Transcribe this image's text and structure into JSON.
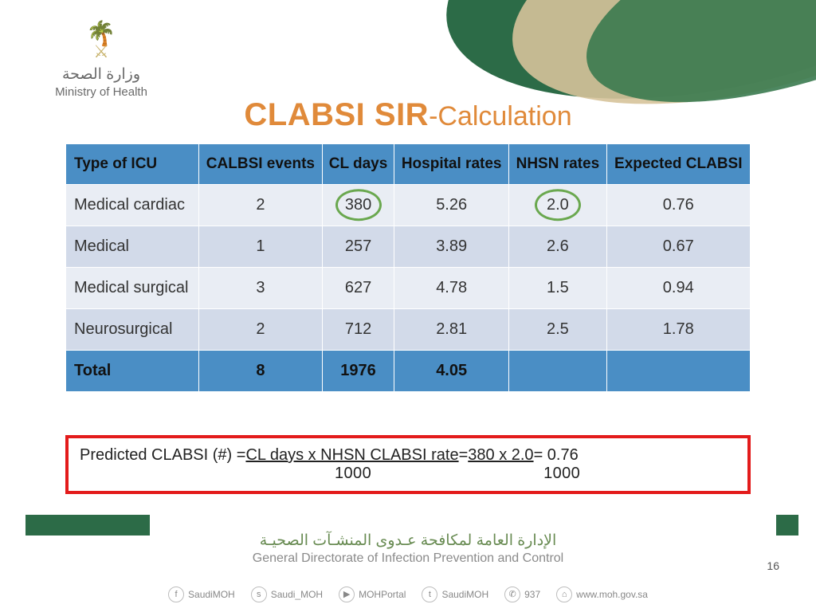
{
  "logo": {
    "arabic": "وزارة الصحة",
    "english": "Ministry of Health"
  },
  "title": {
    "main": "CLABSI SIR",
    "suffix": "-Calculation"
  },
  "table": {
    "columns": [
      "Type of ICU",
      "CALBSI events",
      "CL days",
      "Hospital rates",
      "NHSN rates",
      "Expected CLABSI"
    ],
    "rows": [
      {
        "cells": [
          "Medical cardiac",
          "2",
          "380",
          "5.26",
          "2.0",
          "0.76"
        ],
        "circled": [
          2,
          4
        ]
      },
      {
        "cells": [
          "Medical",
          "1",
          "257",
          "3.89",
          "2.6",
          "0.67"
        ],
        "circled": []
      },
      {
        "cells": [
          "Medical surgical",
          "3",
          "627",
          "4.78",
          "1.5",
          "0.94"
        ],
        "circled": []
      },
      {
        "cells": [
          "Neurosurgical",
          "2",
          "712",
          "2.81",
          "2.5",
          "1.78"
        ],
        "circled": []
      }
    ],
    "total_row": [
      "Total",
      "8",
      "1976",
      "4.05",
      "",
      ""
    ],
    "header_bg": "#4a8ec5",
    "row_odd_bg": "#e9edf4",
    "row_even_bg": "#d2dae9",
    "circle_color": "#6aa84f"
  },
  "formula": {
    "prefix": "Predicted CLABSI (#) = ",
    "part1": "CL days x NHSN CLABSI rate ",
    "eq1": "= ",
    "part2": "380 x 2.0 ",
    "eq2": "= 0.76",
    "denom1": "1000",
    "denom2": "1000",
    "border_color": "#e31b1b"
  },
  "footer": {
    "arabic": "الإدارة العامة لمكافحة عـدوى المنشـآت الصحيـة",
    "english": "General Directorate of Infection Prevention and Control"
  },
  "page_number": "16",
  "social": {
    "items": [
      {
        "icon": "f",
        "label": "SaudiMOH"
      },
      {
        "icon": "s",
        "label": "Saudi_MOH"
      },
      {
        "icon": "▶",
        "label": "MOHPortal"
      },
      {
        "icon": "t",
        "label": "SaudiMOH"
      },
      {
        "icon": "✆",
        "label": "937"
      },
      {
        "icon": "⌂",
        "label": "www.moh.gov.sa"
      }
    ]
  },
  "colors": {
    "title": "#e08a3a",
    "swoosh_dark": "#2c6b47",
    "swoosh_tan": "#d6c39a",
    "swoosh_green": "#3a7a4f"
  }
}
